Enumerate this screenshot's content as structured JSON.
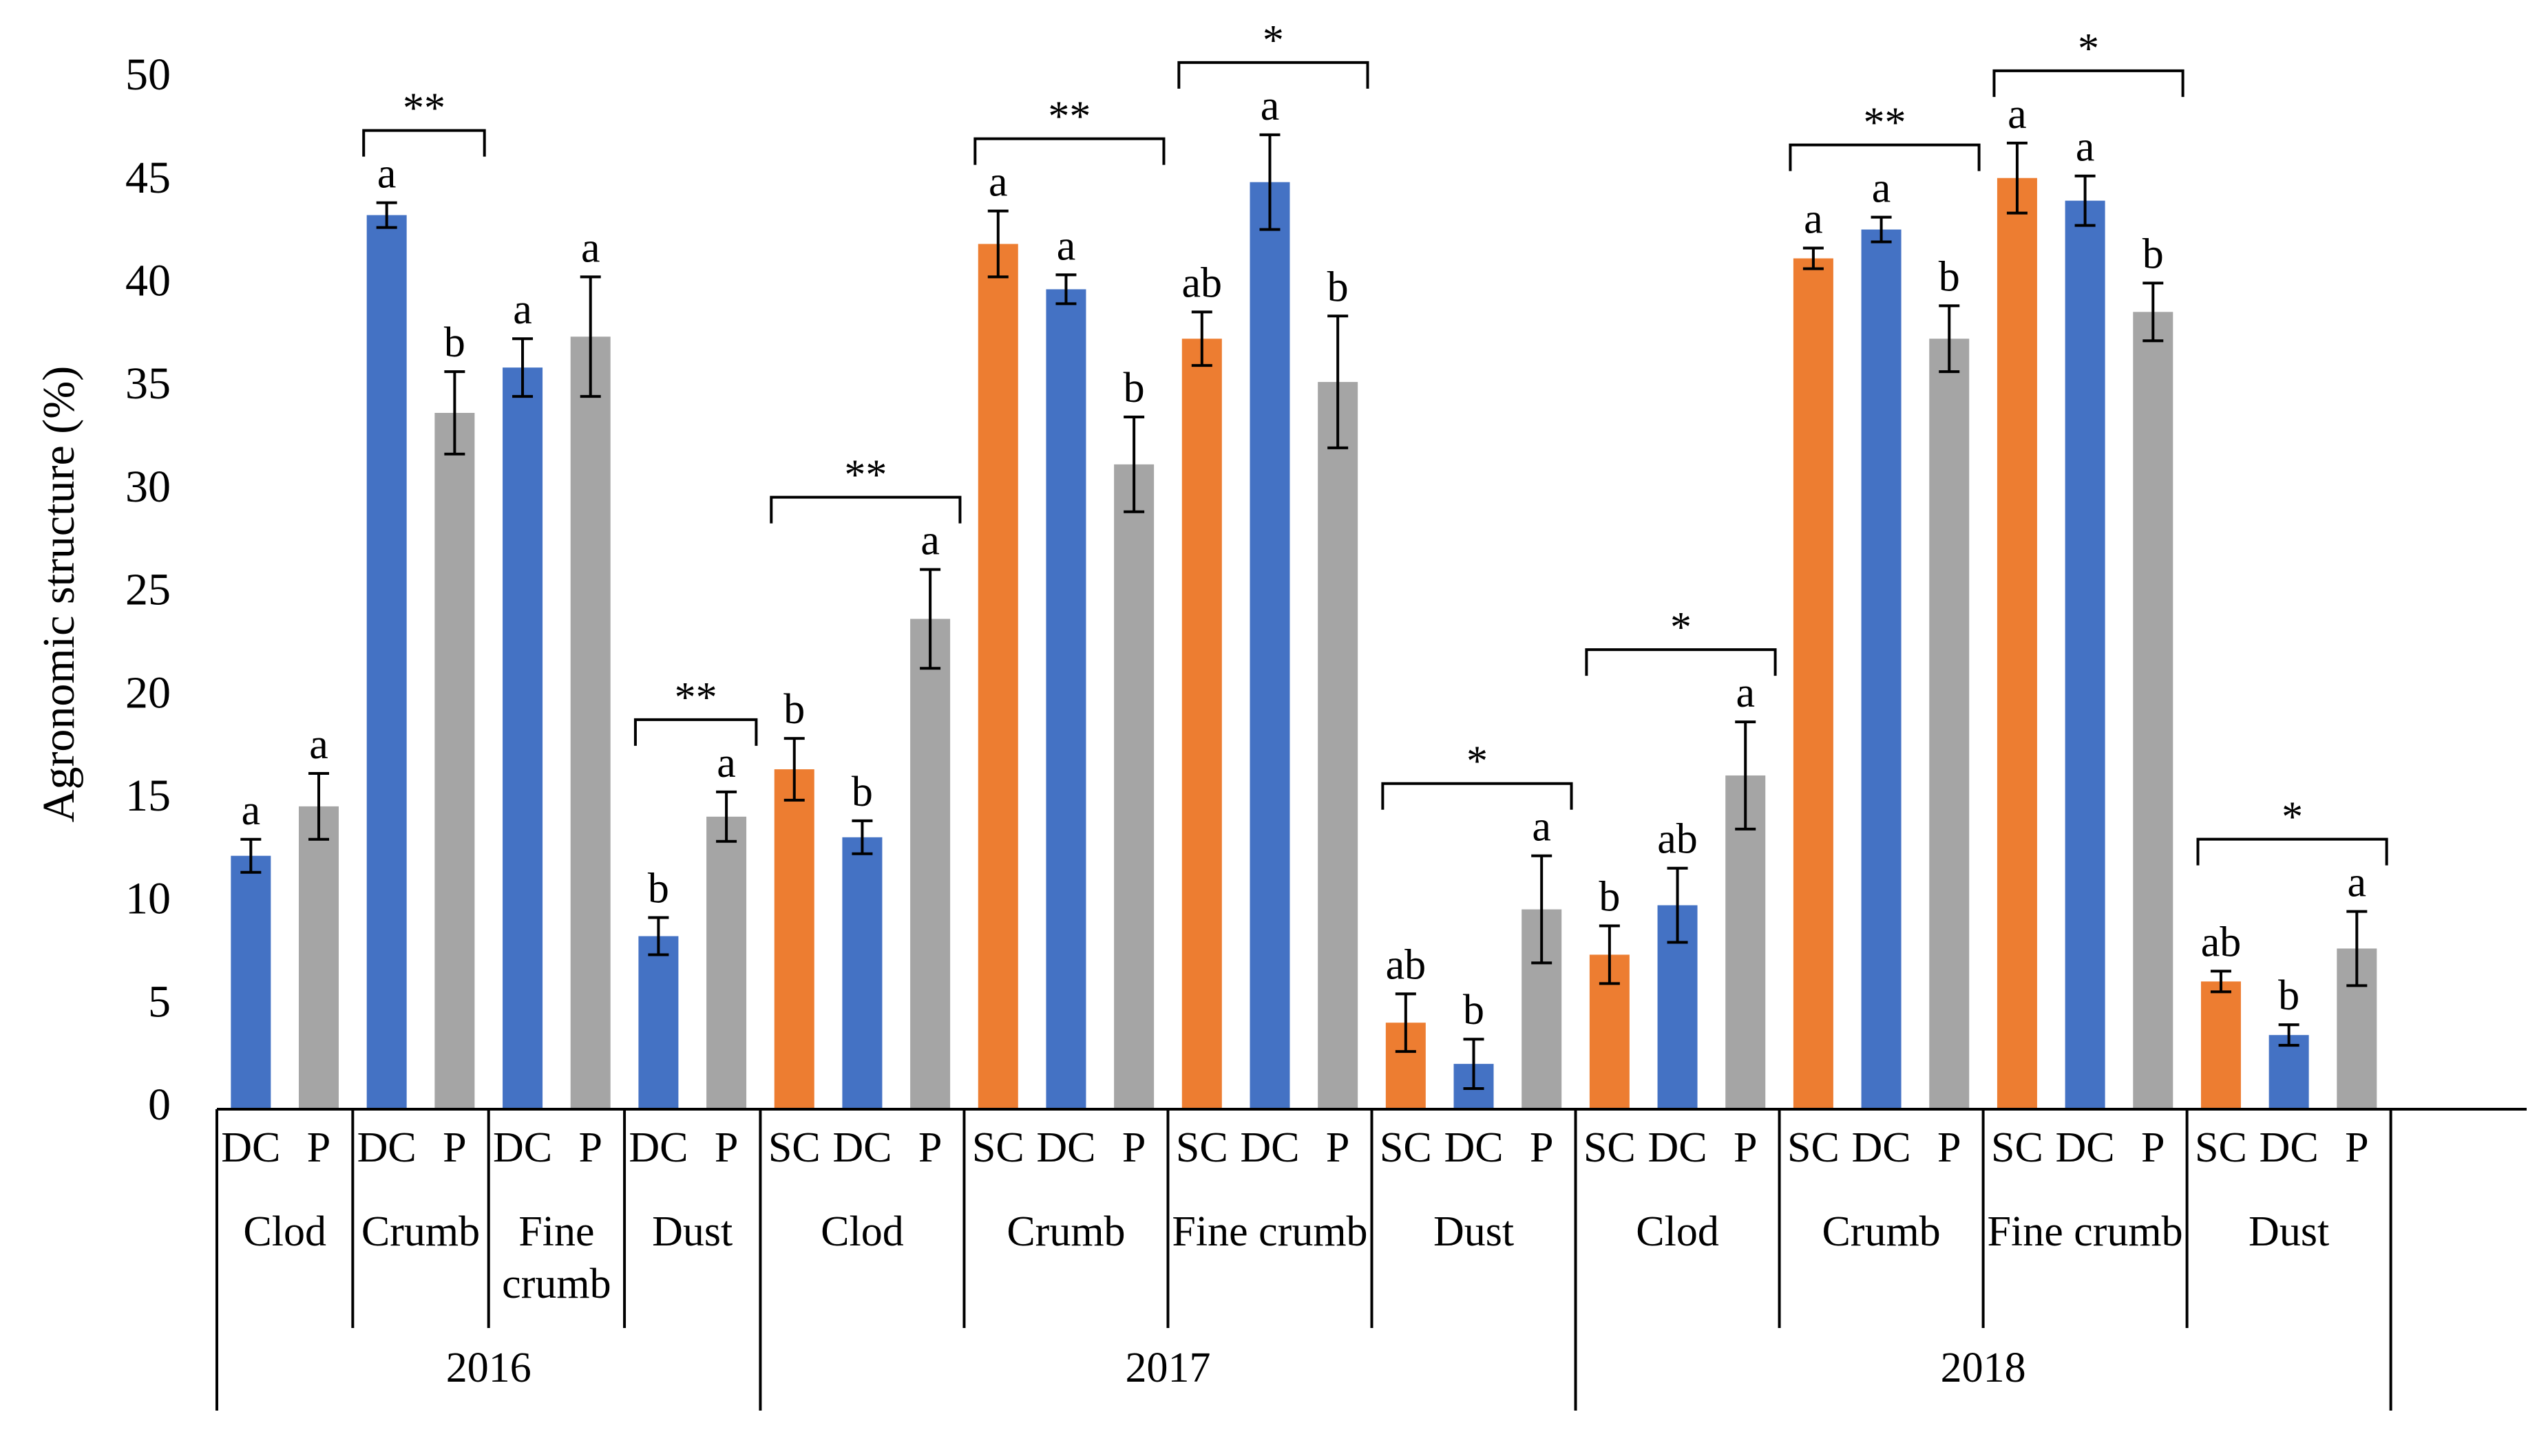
{
  "chart_data": {
    "type": "bar",
    "ylabel": "Agronomic structure (%)",
    "ylim": [
      0,
      50
    ],
    "yticks": [
      0,
      5,
      10,
      15,
      20,
      25,
      30,
      35,
      40,
      45,
      50
    ],
    "grid": false,
    "legend": "none",
    "colors": {
      "SC": "#ED7D31",
      "DC": "#4472C4",
      "P": "#A5A5A5"
    },
    "years": [
      {
        "year": "2016",
        "groups": [
          {
            "label": "Clod",
            "sig": null,
            "bars": [
              {
                "cat": "DC",
                "value": 12.3,
                "err": 0.8,
                "letter": "a"
              },
              {
                "cat": "P",
                "value": 14.7,
                "err": 1.6,
                "letter": "a"
              }
            ]
          },
          {
            "label": "Crumb",
            "sig": "**",
            "bars": [
              {
                "cat": "DC",
                "value": 43.4,
                "err": 0.6,
                "letter": "a"
              },
              {
                "cat": "P",
                "value": 33.8,
                "err": 2.0,
                "letter": "b"
              }
            ]
          },
          {
            "label": "Fine crumb",
            "label_lines": [
              "Fine",
              "crumb"
            ],
            "sig": null,
            "bars": [
              {
                "cat": "DC",
                "value": 36.0,
                "err": 1.4,
                "letter": "a"
              },
              {
                "cat": "P",
                "value": 37.5,
                "err": 2.9,
                "letter": "a"
              }
            ]
          },
          {
            "label": "Dust",
            "sig": "**",
            "bars": [
              {
                "cat": "DC",
                "value": 8.4,
                "err": 0.9,
                "letter": "b"
              },
              {
                "cat": "P",
                "value": 14.2,
                "err": 1.2,
                "letter": "a"
              }
            ]
          }
        ]
      },
      {
        "year": "2017",
        "groups": [
          {
            "label": "Clod",
            "sig": "**",
            "bars": [
              {
                "cat": "SC",
                "value": 16.5,
                "err": 1.5,
                "letter": "b"
              },
              {
                "cat": "DC",
                "value": 13.2,
                "err": 0.8,
                "letter": "b"
              },
              {
                "cat": "P",
                "value": 23.8,
                "err": 2.4,
                "letter": "a"
              }
            ]
          },
          {
            "label": "Crumb",
            "sig": "**",
            "bars": [
              {
                "cat": "SC",
                "value": 42.0,
                "err": 1.6,
                "letter": "a"
              },
              {
                "cat": "DC",
                "value": 39.8,
                "err": 0.7,
                "letter": "a"
              },
              {
                "cat": "P",
                "value": 31.3,
                "err": 2.3,
                "letter": "b"
              }
            ]
          },
          {
            "label": "Fine crumb",
            "sig": "*",
            "bars": [
              {
                "cat": "SC",
                "value": 37.4,
                "err": 1.3,
                "letter": "ab"
              },
              {
                "cat": "DC",
                "value": 45.0,
                "err": 2.3,
                "letter": "a"
              },
              {
                "cat": "P",
                "value": 35.3,
                "err": 3.2,
                "letter": "b"
              }
            ]
          },
          {
            "label": "Dust",
            "sig": "*",
            "bars": [
              {
                "cat": "SC",
                "value": 4.2,
                "err": 1.4,
                "letter": "ab"
              },
              {
                "cat": "DC",
                "value": 2.2,
                "err": 1.2,
                "letter": "b"
              },
              {
                "cat": "P",
                "value": 9.7,
                "err": 2.6,
                "letter": "a"
              }
            ]
          }
        ]
      },
      {
        "year": "2018",
        "groups": [
          {
            "label": "Clod",
            "sig": "*",
            "bars": [
              {
                "cat": "SC",
                "value": 7.5,
                "err": 1.4,
                "letter": "b"
              },
              {
                "cat": "DC",
                "value": 9.9,
                "err": 1.8,
                "letter": "ab"
              },
              {
                "cat": "P",
                "value": 16.2,
                "err": 2.6,
                "letter": "a"
              }
            ]
          },
          {
            "label": "Crumb",
            "sig": "**",
            "bars": [
              {
                "cat": "SC",
                "value": 41.3,
                "err": 0.5,
                "letter": "a"
              },
              {
                "cat": "DC",
                "value": 42.7,
                "err": 0.6,
                "letter": "a"
              },
              {
                "cat": "P",
                "value": 37.4,
                "err": 1.6,
                "letter": "b"
              }
            ]
          },
          {
            "label": "Fine crumb",
            "sig": "*",
            "bars": [
              {
                "cat": "SC",
                "value": 45.2,
                "err": 1.7,
                "letter": "a"
              },
              {
                "cat": "DC",
                "value": 44.1,
                "err": 1.2,
                "letter": "a"
              },
              {
                "cat": "P",
                "value": 38.7,
                "err": 1.4,
                "letter": "b"
              }
            ]
          },
          {
            "label": "Dust",
            "sig": "*",
            "bars": [
              {
                "cat": "SC",
                "value": 6.2,
                "err": 0.5,
                "letter": "ab"
              },
              {
                "cat": "DC",
                "value": 3.6,
                "err": 0.5,
                "letter": "b"
              },
              {
                "cat": "P",
                "value": 7.8,
                "err": 1.8,
                "letter": "a"
              }
            ]
          }
        ]
      }
    ]
  }
}
